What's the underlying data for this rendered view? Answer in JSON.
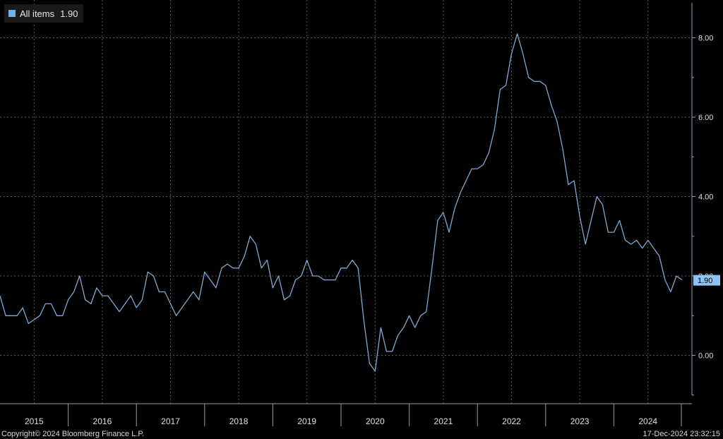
{
  "legend": {
    "label": "All items",
    "value": "1.90"
  },
  "footer": {
    "copyright": "Copyright© 2024 Bloomberg Finance L.P.",
    "timestamp": "17-Dec-2024 23:32:15"
  },
  "colors": {
    "background": "#000000",
    "line": "#7fa9d6",
    "grid": "#5a5a5a",
    "axis": "#8aa0c0",
    "last_value_bg": "#8ec3f2"
  },
  "chart_data": {
    "type": "line",
    "series": [
      {
        "name": "All items",
        "start": "2015-01",
        "frequency": "monthly",
        "values": [
          1.5,
          1.0,
          1.0,
          1.0,
          1.2,
          0.8,
          0.9,
          1.0,
          1.3,
          1.3,
          1.0,
          1.0,
          1.4,
          1.6,
          2.0,
          1.4,
          1.3,
          1.7,
          1.5,
          1.5,
          1.3,
          1.1,
          1.3,
          1.5,
          1.2,
          1.4,
          2.1,
          2.0,
          1.6,
          1.6,
          1.3,
          1.0,
          1.2,
          1.4,
          1.6,
          1.4,
          2.1,
          1.9,
          1.7,
          2.2,
          2.3,
          2.2,
          2.2,
          2.5,
          3.0,
          2.8,
          2.2,
          2.4,
          1.7,
          2.0,
          1.4,
          1.5,
          1.9,
          2.0,
          2.4,
          2.0,
          2.0,
          1.9,
          1.9,
          1.9,
          2.2,
          2.2,
          2.4,
          2.2,
          0.9,
          -0.2,
          -0.4,
          0.7,
          0.1,
          0.1,
          0.5,
          0.7,
          1.0,
          0.7,
          1.0,
          1.1,
          2.2,
          3.4,
          3.6,
          3.1,
          3.7,
          4.1,
          4.4,
          4.7,
          4.7,
          4.8,
          5.1,
          5.7,
          6.7,
          6.8,
          7.6,
          8.1,
          7.6,
          7.0,
          6.9,
          6.9,
          6.8,
          6.3,
          5.9,
          5.2,
          4.3,
          4.4,
          3.5,
          2.8,
          3.4,
          4.0,
          3.8,
          3.1,
          3.1,
          3.4,
          2.9,
          2.8,
          2.9,
          2.7,
          2.9,
          2.7,
          2.5,
          1.9,
          1.6,
          2.0,
          1.9
        ]
      }
    ],
    "last_value_label": "1.90",
    "x_tick_labels": [
      "2015",
      "2016",
      "2017",
      "2018",
      "2019",
      "2020",
      "2021",
      "2022",
      "2023",
      "2024"
    ],
    "y_tick_labels": [
      "0.00",
      "2.00",
      "4.00",
      "6.00",
      "8.00"
    ],
    "y_ticks": [
      0,
      2,
      4,
      6,
      8
    ],
    "ylim": [
      -1.0,
      9.0
    ],
    "grid": true,
    "legend_position": "top-left"
  }
}
